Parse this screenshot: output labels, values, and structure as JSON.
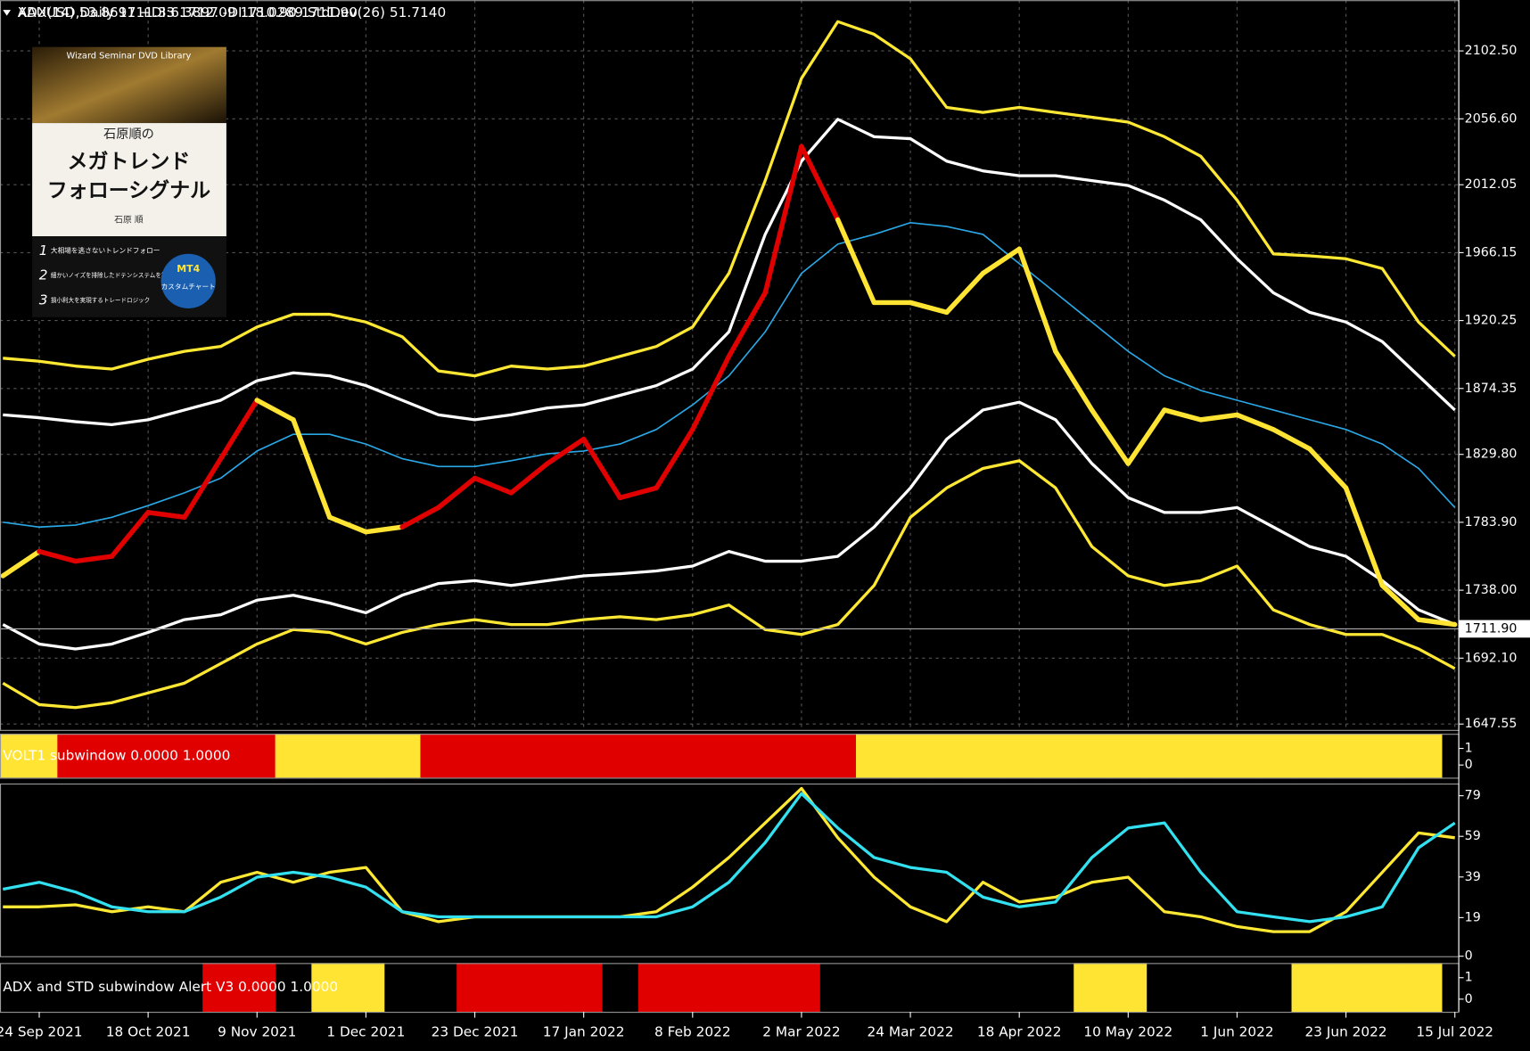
{
  "chart_data": [
    {
      "type": "line",
      "title": "XAUUSD,Daily  1711.33 1712.09 1710.90 1711.90",
      "categories": [
        null,
        "24 Sep 2021",
        null,
        null,
        "18 Oct 2021",
        null,
        null,
        "9 Nov 2021",
        null,
        null,
        "1 Dec 2021",
        null,
        null,
        "23 Dec 2021",
        null,
        null,
        "17 Jan 2022",
        null,
        null,
        "8 Feb 2022",
        null,
        null,
        "2 Mar 2022",
        null,
        null,
        "24 Mar 2022",
        null,
        null,
        "18 Apr 2022",
        null,
        null,
        "10 May 2022",
        null,
        null,
        "1 Jun 2022",
        null,
        null,
        "23 Jun 2022",
        null,
        null,
        "15 Jul 2022"
      ],
      "ylim": [
        1643.6,
        2136.8
      ],
      "yticks": [
        {
          "value": 2102.5,
          "label": "2102.50"
        },
        {
          "value": 2056.6,
          "label": "2056.60"
        },
        {
          "value": 2012.05,
          "label": "2012.05"
        },
        {
          "value": 1966.15,
          "label": "1966.15"
        },
        {
          "value": 1920.25,
          "label": "1920.25"
        },
        {
          "value": 1874.35,
          "label": "1874.35"
        },
        {
          "value": 1829.8,
          "label": "1829.80"
        },
        {
          "value": 1783.9,
          "label": "1783.90"
        },
        {
          "value": 1738,
          "label": "1738.00"
        },
        {
          "value": 1692.1,
          "label": "1692.10"
        },
        {
          "value": 1647.55,
          "label": "1647.55"
        }
      ],
      "grid": true,
      "current": {
        "value": 1711.9,
        "label": "1711.90"
      },
      "series": [
        {
          "color": "#ffe833",
          "width": 3,
          "values": [
            1894.8,
            1892.8,
            1889.5,
            1887.5,
            1894.1,
            1899.4,
            1902.7,
            1915.9,
            1924.5,
            1924.5,
            1919.2,
            1909.3,
            1886.2,
            1882.9,
            1889.5,
            1887.5,
            1889.5,
            1896.1,
            1902.7,
            1915.9,
            1952.2,
            2014.8,
            2084.0,
            2122.3,
            2113.7,
            2097.2,
            2064.3,
            2060.9,
            2064.3,
            2060.9,
            2057.7,
            2054.4,
            2044.5,
            2031.3,
            2001.6,
            1965.3,
            1964.0,
            1962.0,
            1955.4,
            1919.2,
            1896.1
          ]
        },
        {
          "color": "#ffffff",
          "width": 3,
          "values": [
            1856.5,
            1854.6,
            1851.9,
            1849.9,
            1853.2,
            1859.8,
            1866.4,
            1879.6,
            1884.9,
            1882.9,
            1876.3,
            1866.4,
            1856.5,
            1853.2,
            1856.5,
            1861.2,
            1863.2,
            1869.7,
            1876.3,
            1887.5,
            1912.6,
            1978.5,
            2028.0,
            2056.3,
            2044.5,
            2043.2,
            2028.0,
            2021.4,
            2018.1,
            2018.1,
            2014.8,
            2011.5,
            2001.6,
            1988.4,
            1962.0,
            1939.0,
            1925.8,
            1919.2,
            1906.0,
            1882.9,
            1859.8
          ]
        },
        {
          "color": "#2aa8e6",
          "width": 1.5,
          "values": [
            1784.0,
            1780.7,
            1782.0,
            1787.3,
            1795.2,
            1803.8,
            1813.7,
            1832.1,
            1843.4,
            1843.4,
            1836.8,
            1826.9,
            1821.6,
            1821.6,
            1825.5,
            1830.2,
            1832.1,
            1836.8,
            1846.6,
            1863.2,
            1882.9,
            1912.6,
            1952.2,
            1971.9,
            1978.5,
            1986.4,
            1983.8,
            1978.5,
            1958.7,
            1939.0,
            1919.2,
            1899.4,
            1882.9,
            1873.0,
            1866.4,
            1859.8,
            1853.2,
            1846.6,
            1836.8,
            1820.3,
            1793.9
          ]
        },
        {
          "color": "#ffffff",
          "width": 3,
          "values": [
            1714.8,
            1701.6,
            1698.3,
            1701.6,
            1709.5,
            1718.1,
            1721.4,
            1731.3,
            1734.6,
            1729.3,
            1722.7,
            1734.6,
            1742.5,
            1744.5,
            1741.2,
            1744.5,
            1747.7,
            1749.1,
            1751.0,
            1754.3,
            1764.2,
            1757.6,
            1757.6,
            1760.9,
            1780.7,
            1807.1,
            1840.1,
            1859.8,
            1865.1,
            1853.2,
            1823.6,
            1800.5,
            1790.6,
            1790.6,
            1793.9,
            1780.7,
            1767.5,
            1760.9,
            1744.5,
            1724.7,
            1714.8
          ]
        },
        {
          "color": "#ffe833",
          "width": 3,
          "values": [
            1675.2,
            1660.7,
            1658.7,
            1662.0,
            1668.6,
            1675.2,
            1688.4,
            1701.6,
            1711.4,
            1709.5,
            1701.6,
            1709.5,
            1714.8,
            1718.1,
            1714.8,
            1714.8,
            1718.1,
            1720.1,
            1718.1,
            1721.4,
            1728.0,
            1711.4,
            1708.1,
            1714.8,
            1741.2,
            1787.3,
            1807.1,
            1820.3,
            1825.5,
            1807.1,
            1767.5,
            1747.7,
            1741.2,
            1744.5,
            1754.3,
            1724.7,
            1714.8,
            1708.1,
            1708.1,
            1698.3,
            1685.1
          ]
        },
        {
          "width": 5,
          "values": [
            1747.7,
            1764.2,
            1757.6,
            1760.9,
            1790.6,
            1787.3,
            1826.9,
            1866.4,
            1853.2,
            1787.3,
            1777.4,
            1780.7,
            1793.9,
            1813.7,
            1803.8,
            1823.6,
            1840.1,
            1800.5,
            1807.1,
            1846.6,
            1896.1,
            1939.0,
            2037.9,
            1988.4,
            1932.4,
            1932.4,
            1925.8,
            1952.2,
            1968.6,
            1899.4,
            1859.8,
            1823.6,
            1859.8,
            1853.2,
            1856.5,
            1846.6,
            1833.5,
            1807.1,
            1741.2,
            1718.1,
            1714.8
          ],
          "colors": [
            "#ffe433",
            "#ffe433",
            "#e00000",
            "#e00000",
            "#e00000",
            "#e00000",
            "#e00000",
            "#e00000",
            "#ffe433",
            "#ffe433",
            "#ffe433",
            "#ffe433",
            "#e00000",
            "#e00000",
            "#e00000",
            "#e00000",
            "#e00000",
            "#e00000",
            "#e00000",
            "#e00000",
            "#e00000",
            "#e00000",
            "#e00000",
            "#e00000",
            "#ffe433",
            "#ffe433",
            "#ffe433",
            "#ffe433",
            "#ffe433",
            "#ffe433",
            "#ffe433",
            "#ffe433",
            "#ffe433",
            "#ffe433",
            "#ffe433",
            "#ffe433",
            "#ffe433",
            "#ffe433",
            "#ffe433",
            "#ffe433",
            "#ffe433"
          ]
        }
      ]
    },
    {
      "type": "state",
      "title": "VOLT1 subwindow 0.0000 1.0000",
      "ylim": [
        0,
        1
      ],
      "yticks": [
        1,
        0
      ],
      "values": [
        1,
        1,
        1,
        1,
        1,
        1,
        1,
        1,
        1,
        1,
        1,
        1,
        1,
        1,
        1,
        1,
        1,
        1,
        1,
        1,
        1,
        1,
        1,
        1,
        1,
        1,
        1,
        1,
        1,
        1,
        1,
        1,
        1,
        1,
        1,
        1,
        1,
        1,
        1,
        1,
        1
      ],
      "colors": [
        "#ffe433",
        "#ffe433",
        "#e00000",
        "#e00000",
        "#e00000",
        "#e00000",
        "#e00000",
        "#e00000",
        "#ffe433",
        "#ffe433",
        "#ffe433",
        "#ffe433",
        "#e00000",
        "#e00000",
        "#e00000",
        "#e00000",
        "#e00000",
        "#e00000",
        "#e00000",
        "#e00000",
        "#e00000",
        "#e00000",
        "#e00000",
        "#e00000",
        "#ffe433",
        "#ffe433",
        "#ffe433",
        "#ffe433",
        "#ffe433",
        "#ffe433",
        "#ffe433",
        "#ffe433",
        "#ffe433",
        "#ffe433",
        "#ffe433",
        "#ffe433",
        "#ffe433",
        "#ffe433",
        "#ffe433",
        "#ffe433",
        "#ffe433"
      ]
    },
    {
      "type": "line",
      "title": "ADX(14) 53.8691 +DI:6.3897 -DI:18.0289  StdDev(26) 51.7140",
      "ylim": [
        0,
        85
      ],
      "yticks": [
        79,
        59,
        39,
        19,
        0
      ],
      "series": [
        {
          "color": "#ffe833",
          "width": 3,
          "values": [
            24.3,
            24.3,
            25.3,
            21.9,
            24.3,
            21.9,
            36.4,
            41.3,
            36.4,
            41.3,
            43.7,
            21.9,
            17.0,
            19.4,
            19.4,
            19.4,
            19.4,
            19.4,
            21.9,
            34.0,
            48.6,
            65.6,
            82.6,
            58.3,
            38.9,
            24.3,
            17.0,
            36.4,
            26.7,
            29.1,
            36.4,
            38.9,
            21.9,
            19.4,
            14.6,
            12.1,
            12.1,
            21.9,
            41.3,
            60.7,
            58.3
          ]
        },
        {
          "color": "#33e0f0",
          "width": 3,
          "values": [
            33.0,
            36.4,
            31.6,
            24.3,
            21.9,
            21.9,
            29.1,
            38.9,
            41.3,
            38.9,
            34.0,
            21.9,
            19.4,
            19.4,
            19.4,
            19.4,
            19.4,
            19.4,
            19.4,
            24.3,
            36.4,
            55.9,
            80.1,
            63.1,
            48.6,
            43.7,
            41.3,
            29.1,
            24.3,
            26.7,
            48.6,
            63.1,
            65.6,
            41.3,
            21.9,
            19.4,
            17.0,
            19.4,
            24.3,
            53.4,
            65.6
          ]
        }
      ]
    },
    {
      "type": "state",
      "title": "ADX and STD subwindow Alert V3 0.0000 1.0000",
      "ylim": [
        0,
        1
      ],
      "yticks": [
        1,
        0
      ],
      "values": [
        0,
        0,
        0,
        0,
        0,
        0,
        1,
        1,
        0,
        1,
        1,
        0,
        0,
        1,
        1,
        1,
        1,
        0,
        1,
        1,
        1,
        1,
        1,
        0,
        0,
        0,
        0,
        0,
        0,
        0,
        1,
        1,
        0,
        0,
        0,
        0,
        1,
        1,
        1,
        1,
        1
      ],
      "colors": [
        null,
        null,
        null,
        null,
        null,
        null,
        "#e00000",
        "#e00000",
        null,
        "#ffe433",
        "#ffe433",
        null,
        null,
        "#e00000",
        "#e00000",
        "#e00000",
        "#e00000",
        null,
        "#e00000",
        "#e00000",
        "#e00000",
        "#e00000",
        "#e00000",
        null,
        null,
        null,
        null,
        null,
        null,
        null,
        "#ffe433",
        "#ffe433",
        null,
        null,
        null,
        null,
        "#ffe433",
        "#ffe433",
        "#ffe433",
        "#ffe433",
        "#ffe433"
      ]
    }
  ],
  "book": {
    "header": "Wizard Seminar DVD Library",
    "author_line": "石原順の",
    "title_lines": [
      "メガトレンド",
      "フォローシグナル"
    ],
    "author": "石原 順",
    "points": [
      {
        "n": "1",
        "text": "大相場を逃さないトレンドフォロー"
      },
      {
        "n": "2",
        "text": "細かいノイズを排除したドテンシステムを採用"
      },
      {
        "n": "3",
        "text": "損小利大を実現するトレードロジック"
      }
    ],
    "badge": [
      "MT4",
      "カスタムチャート"
    ]
  }
}
